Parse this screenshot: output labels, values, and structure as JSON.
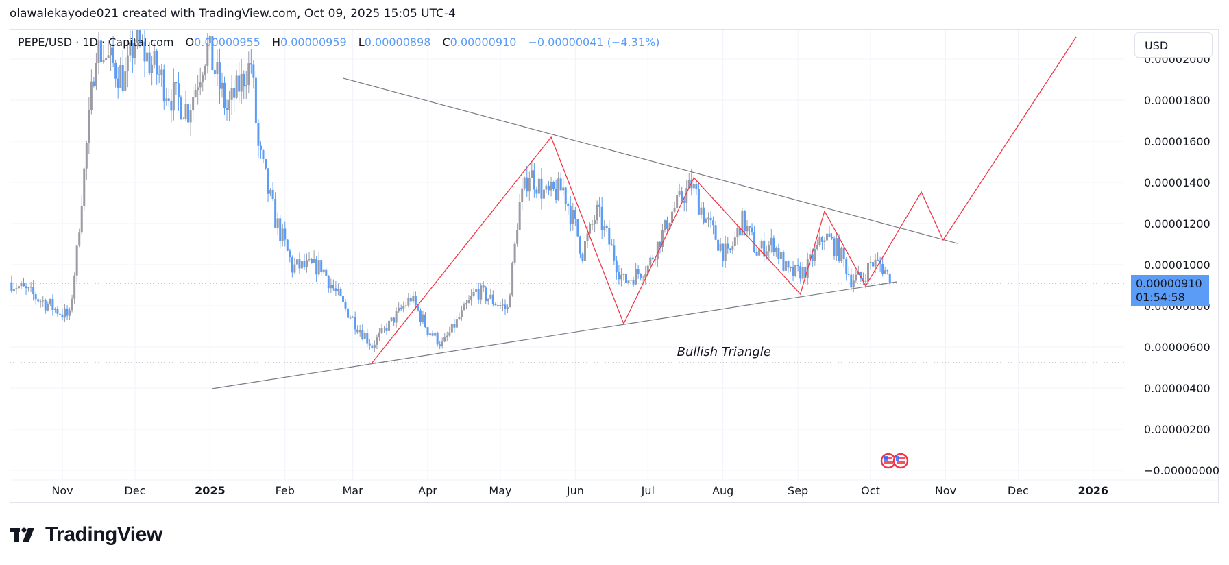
{
  "header": {
    "text": "olawalekayode021 created with TradingView.com, Oct 09, 2025 15:05 UTC-4"
  },
  "legend": {
    "symbol": "PEPE/USD · 1D · Capital.com",
    "o_label": "O",
    "o": "0.00000955",
    "h_label": "H",
    "h": "0.00000959",
    "l_label": "L",
    "l": "0.00000898",
    "c_label": "C",
    "c": "0.00000910",
    "change": "−0.00000041 (−4.31%)"
  },
  "currency_button": "USD",
  "last_price": {
    "value": "0.00000910",
    "countdown": "01:54:58"
  },
  "brand": {
    "name": "TradingView"
  },
  "colors": {
    "up": "#9a9ba3",
    "down": "#5b9cf6",
    "zigzag": "#f23645",
    "trendline": "#787b86",
    "grid": "#f0f3fa",
    "price_line": "#5b9cf6"
  },
  "chart_data": {
    "type": "candlestick",
    "title": "PEPE/USD · 1D · Capital.com",
    "y_axis": {
      "ylim": [
        0,
        2.1e-05
      ],
      "ticks": [
        {
          "value": 0,
          "label": "−0.00000000"
        },
        {
          "value": 2e-06,
          "label": "0.00000200"
        },
        {
          "value": 4e-06,
          "label": "0.00000400"
        },
        {
          "value": 6e-06,
          "label": "0.00000600"
        },
        {
          "value": 8e-06,
          "label": "0.00000800"
        },
        {
          "value": 1e-05,
          "label": "0.00001000"
        },
        {
          "value": 1.2e-05,
          "label": "0.00001200"
        },
        {
          "value": 1.4e-05,
          "label": "0.00001400"
        },
        {
          "value": 1.6e-05,
          "label": "0.00001600"
        },
        {
          "value": 1.8e-05,
          "label": "0.00001800"
        },
        {
          "value": 2e-05,
          "label": "0.00002000"
        }
      ]
    },
    "x_axis": {
      "ticks": [
        {
          "date": "2024-11-01",
          "label": "Nov",
          "bold": false
        },
        {
          "date": "2024-12-01",
          "label": "Dec",
          "bold": false
        },
        {
          "date": "2025-01-01",
          "label": "2025",
          "bold": true
        },
        {
          "date": "2025-02-01",
          "label": "Feb",
          "bold": false
        },
        {
          "date": "2025-03-01",
          "label": "Mar",
          "bold": false
        },
        {
          "date": "2025-04-01",
          "label": "Apr",
          "bold": false
        },
        {
          "date": "2025-05-01",
          "label": "May",
          "bold": false
        },
        {
          "date": "2025-06-01",
          "label": "Jun",
          "bold": false
        },
        {
          "date": "2025-07-01",
          "label": "Jul",
          "bold": false
        },
        {
          "date": "2025-08-01",
          "label": "Aug",
          "bold": false
        },
        {
          "date": "2025-09-01",
          "label": "Sep",
          "bold": false
        },
        {
          "date": "2025-10-01",
          "label": "Oct",
          "bold": false
        },
        {
          "date": "2025-11-01",
          "label": "Nov",
          "bold": false
        },
        {
          "date": "2025-12-01",
          "label": "Dec",
          "bold": false
        },
        {
          "date": "2026-01-01",
          "label": "2026",
          "bold": true
        }
      ]
    },
    "close_path": [
      [
        "2024-10-11",
        9.14e-06
      ],
      [
        "2024-11-04",
        7.43e-06
      ],
      [
        "2024-11-07",
        1.067e-05
      ],
      [
        "2024-11-12",
        1.714e-05
      ],
      [
        "2024-11-15",
        2.057e-05
      ],
      [
        "2024-11-27",
        1.905e-05
      ],
      [
        "2024-12-01",
        2.095e-05
      ],
      [
        "2024-12-16",
        1.829e-05
      ],
      [
        "2024-12-23",
        1.752e-05
      ],
      [
        "2024-12-31",
        2.057e-05
      ],
      [
        "2025-01-08",
        1.752e-05
      ],
      [
        "2025-01-18",
        1.981e-05
      ],
      [
        "2025-01-21",
        1.562e-05
      ],
      [
        "2025-01-27",
        1.257e-05
      ],
      [
        "2025-02-04",
        9.9e-06
      ],
      [
        "2025-02-16",
        9.9e-06
      ],
      [
        "2025-02-25",
        8e-06
      ],
      [
        "2025-03-09",
        6.1e-06
      ],
      [
        "2025-03-17",
        7.24e-06
      ],
      [
        "2025-03-25",
        8.38e-06
      ],
      [
        "2025-04-01",
        6.86e-06
      ],
      [
        "2025-04-07",
        6.1e-06
      ],
      [
        "2025-04-21",
        8.76e-06
      ],
      [
        "2025-05-04",
        7.81e-06
      ],
      [
        "2025-05-09",
        1.295e-05
      ],
      [
        "2025-05-13",
        1.448e-05
      ],
      [
        "2025-05-20",
        1.333e-05
      ],
      [
        "2025-05-27",
        1.37e-05
      ],
      [
        "2025-06-04",
        1.067e-05
      ],
      [
        "2025-06-10",
        1.257e-05
      ],
      [
        "2025-06-15",
        1.105e-05
      ],
      [
        "2025-06-21",
        9.14e-06
      ],
      [
        "2025-07-01",
        9.9e-06
      ],
      [
        "2025-07-11",
        1.257e-05
      ],
      [
        "2025-07-19",
        1.39e-05
      ],
      [
        "2025-07-25",
        1.219e-05
      ],
      [
        "2025-08-03",
        1.029e-05
      ],
      [
        "2025-08-09",
        1.219e-05
      ],
      [
        "2025-08-15",
        1.067e-05
      ],
      [
        "2025-08-22",
        1.105e-05
      ],
      [
        "2025-08-28",
        9.52e-06
      ],
      [
        "2025-09-04",
        9.7e-06
      ],
      [
        "2025-09-12",
        1.143e-05
      ],
      [
        "2025-09-18",
        1.067e-05
      ],
      [
        "2025-09-23",
        9.33e-06
      ],
      [
        "2025-09-28",
        9.33e-06
      ],
      [
        "2025-10-01",
        1.01e-05
      ],
      [
        "2025-10-05",
        1e-05
      ],
      [
        "2025-10-08",
        9.55e-06
      ],
      [
        "2025-10-09",
        9.1e-06
      ]
    ],
    "last_candle": {
      "date": "2025-10-09",
      "open": 9.55e-06,
      "high": 9.59e-06,
      "low": 8.98e-06,
      "close": 9.1e-06
    },
    "current_price": 9.1e-06,
    "support_level": 5.23e-06,
    "drawings": {
      "upper_trendline": [
        [
          "2025-02-25",
          1.907e-05
        ],
        [
          "2025-11-06",
          1.103e-05
        ]
      ],
      "lower_trendline": [
        [
          "2025-01-02",
          3.97e-06
        ],
        [
          "2025-10-12",
          9.17e-06
        ]
      ],
      "zigzag": [
        [
          "2025-03-09",
          5.23e-06
        ],
        [
          "2025-05-22",
          1.62e-05
        ],
        [
          "2025-06-21",
          7.13e-06
        ],
        [
          "2025-07-20",
          1.423e-05
        ],
        [
          "2025-09-02",
          8.57e-06
        ],
        [
          "2025-09-12",
          1.26e-05
        ],
        [
          "2025-09-29",
          8.97e-06
        ],
        [
          "2025-10-22",
          1.353e-05
        ],
        [
          "2025-10-31",
          1.12e-05
        ],
        [
          "2025-12-25",
          2.107e-05
        ]
      ],
      "annotation": {
        "text": "Bullish Triangle",
        "date": "2025-07-13",
        "price": 5.77e-06
      }
    }
  }
}
